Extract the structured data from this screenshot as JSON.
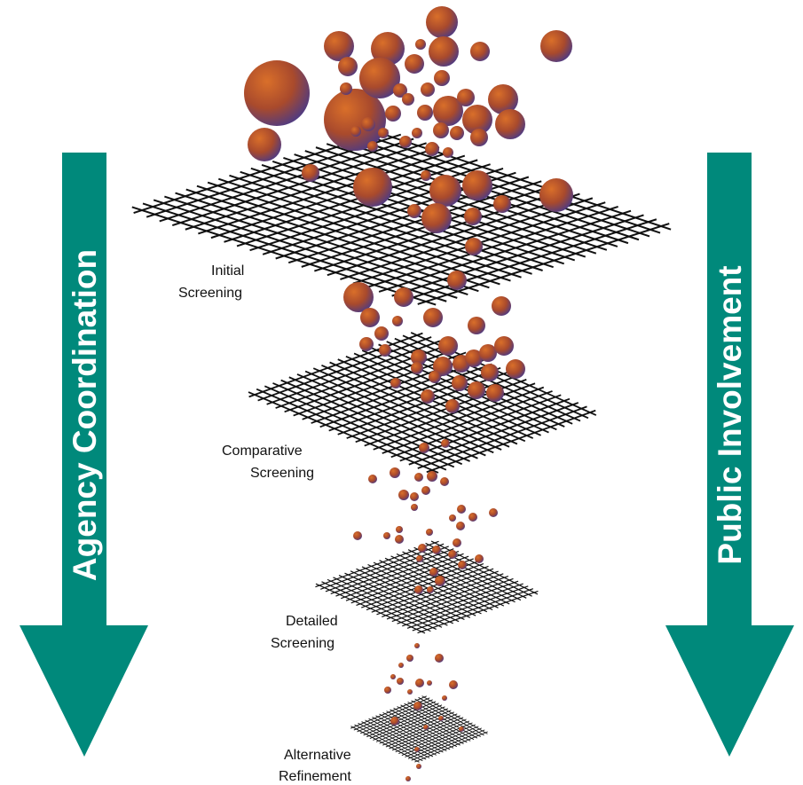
{
  "arrows": {
    "left": {
      "label": "Agency Coordination"
    },
    "right": {
      "label": "Public Involvement"
    },
    "color": "#00897B"
  },
  "stages": [
    {
      "label_line1": "Initial",
      "label_line2": "Screening"
    },
    {
      "label_line1": "Comparative",
      "label_line2": "Screening"
    },
    {
      "label_line1": "Detailed",
      "label_line2": "Screening"
    },
    {
      "label_line1": "Alternative",
      "label_line2": "Refinement"
    }
  ],
  "colors": {
    "sphere_light": "#d2692a",
    "sphere_mid": "#a24a30",
    "sphere_dark": "#4a3880",
    "grid": "#111111"
  }
}
